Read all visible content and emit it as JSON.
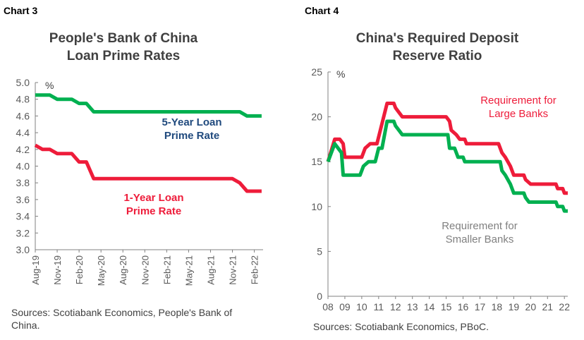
{
  "chart_data": [
    {
      "type": "line",
      "label": "Chart 3",
      "title": [
        "People's Bank of China",
        "Loan Prime Rates"
      ],
      "ylabel": "%",
      "ylim": [
        3.0,
        5.0
      ],
      "yticks": [
        "3.0",
        "3.2",
        "3.4",
        "3.6",
        "3.8",
        "4.0",
        "4.2",
        "4.4",
        "4.6",
        "4.8",
        "5.0"
      ],
      "xticks": [
        "Aug-19",
        "Nov-19",
        "Feb-20",
        "May-20",
        "Aug-20",
        "Nov-20",
        "Feb-21",
        "May-21",
        "Aug-21",
        "Nov-21",
        "Feb-22"
      ],
      "x_note": "months since Aug-19",
      "series": [
        {
          "name": "5-Year Loan Prime Rate",
          "label": [
            "5-Year Loan",
            "Prime Rate"
          ],
          "color": "#00b050",
          "label_color": "#1f497d",
          "points": [
            [
              0,
              4.85
            ],
            [
              2,
              4.85
            ],
            [
              3,
              4.8
            ],
            [
              5,
              4.8
            ],
            [
              6,
              4.75
            ],
            [
              7,
              4.75
            ],
            [
              8,
              4.65
            ],
            [
              28,
              4.65
            ],
            [
              29,
              4.6
            ],
            [
              31,
              4.6
            ]
          ]
        },
        {
          "name": "1-Year Loan Prime Rate",
          "label": [
            "1-Year Loan",
            "Prime Rate"
          ],
          "color": "#ee1c3a",
          "label_color": "#ee1c3a",
          "points": [
            [
              0,
              4.25
            ],
            [
              1,
              4.2
            ],
            [
              2,
              4.2
            ],
            [
              3,
              4.15
            ],
            [
              5,
              4.15
            ],
            [
              6,
              4.05
            ],
            [
              7,
              4.05
            ],
            [
              8,
              3.85
            ],
            [
              27,
              3.85
            ],
            [
              28,
              3.8
            ],
            [
              29,
              3.7
            ],
            [
              31,
              3.7
            ]
          ]
        }
      ],
      "source": [
        "Sources: Scotiabank Economics, People's Bank of",
        "China."
      ]
    },
    {
      "type": "line",
      "label": "Chart 4",
      "title": [
        "China's Required Deposit",
        "Reserve Ratio"
      ],
      "ylabel": "%",
      "ylim": [
        0,
        25
      ],
      "yticks": [
        "0",
        "5",
        "10",
        "15",
        "20",
        "25"
      ],
      "xticks": [
        "08",
        "09",
        "10",
        "11",
        "12",
        "13",
        "14",
        "15",
        "16",
        "17",
        "18",
        "19",
        "20",
        "21",
        "22"
      ],
      "series": [
        {
          "name": "Requirement for Large Banks",
          "label": [
            "Requirement for",
            "Large Banks"
          ],
          "color": "#ee1c3a",
          "label_color": "#ee1c3a",
          "points": [
            [
              2008.0,
              15
            ],
            [
              2008.4,
              17.5
            ],
            [
              2008.7,
              17.5
            ],
            [
              2008.9,
              17
            ],
            [
              2009.0,
              15.5
            ],
            [
              2010.0,
              15.5
            ],
            [
              2010.2,
              16.5
            ],
            [
              2010.5,
              17
            ],
            [
              2010.9,
              17
            ],
            [
              2011.1,
              18.5
            ],
            [
              2011.5,
              21.5
            ],
            [
              2011.9,
              21.5
            ],
            [
              2012.0,
              21
            ],
            [
              2012.2,
              20.5
            ],
            [
              2012.4,
              20
            ],
            [
              2015.0,
              20
            ],
            [
              2015.2,
              19.5
            ],
            [
              2015.3,
              18.5
            ],
            [
              2015.6,
              18
            ],
            [
              2015.8,
              17.5
            ],
            [
              2016.1,
              17.5
            ],
            [
              2016.2,
              17
            ],
            [
              2018.1,
              17
            ],
            [
              2018.3,
              16
            ],
            [
              2018.5,
              15.5
            ],
            [
              2018.8,
              14.5
            ],
            [
              2019.0,
              13.5
            ],
            [
              2019.6,
              13.5
            ],
            [
              2019.7,
              13
            ],
            [
              2020.0,
              12.5
            ],
            [
              2021.5,
              12.5
            ],
            [
              2021.6,
              12
            ],
            [
              2021.9,
              12
            ],
            [
              2022.0,
              11.5
            ],
            [
              2022.2,
              11.5
            ]
          ]
        },
        {
          "name": "Requirement for Smaller Banks",
          "label": [
            "Requirement for",
            "Smaller Banks"
          ],
          "color": "#00b050",
          "label_color": "#808080",
          "points": [
            [
              2008.0,
              15
            ],
            [
              2008.4,
              17
            ],
            [
              2008.6,
              16.5
            ],
            [
              2008.8,
              16
            ],
            [
              2008.9,
              13.5
            ],
            [
              2009.9,
              13.5
            ],
            [
              2010.1,
              14.5
            ],
            [
              2010.4,
              15
            ],
            [
              2010.8,
              15
            ],
            [
              2011.0,
              16.5
            ],
            [
              2011.2,
              16.5
            ],
            [
              2011.5,
              19.5
            ],
            [
              2011.9,
              19.5
            ],
            [
              2012.0,
              19
            ],
            [
              2012.2,
              18.5
            ],
            [
              2012.4,
              18
            ],
            [
              2015.1,
              18
            ],
            [
              2015.2,
              16.5
            ],
            [
              2015.5,
              16.5
            ],
            [
              2015.7,
              15.5
            ],
            [
              2016.0,
              15.5
            ],
            [
              2016.1,
              15
            ],
            [
              2018.2,
              15
            ],
            [
              2018.3,
              14
            ],
            [
              2018.5,
              13.5
            ],
            [
              2018.8,
              12.5
            ],
            [
              2019.0,
              11.5
            ],
            [
              2019.6,
              11.5
            ],
            [
              2019.7,
              11
            ],
            [
              2019.9,
              10.5
            ],
            [
              2021.5,
              10.5
            ],
            [
              2021.6,
              10
            ],
            [
              2021.9,
              10
            ],
            [
              2022.0,
              9.5
            ],
            [
              2022.2,
              9.5
            ]
          ]
        }
      ],
      "source": [
        "Sources: Scotiabank Economics, PBoC."
      ]
    }
  ]
}
